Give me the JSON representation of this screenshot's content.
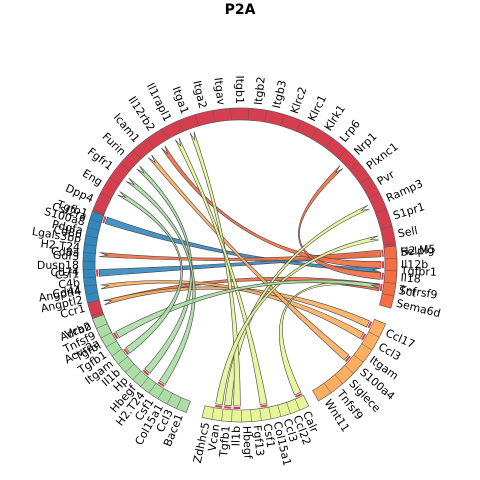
{
  "title": "P2A",
  "colors": {
    "red": "#d53e4f",
    "blue": "#3288bd",
    "orange": "#f46d43",
    "amber": "#fdae61",
    "yellow": "#fee08b",
    "lime": "#e6f598",
    "lightgreen": "#abdda4",
    "green": "#99d594"
  },
  "groups": [
    {
      "name": "red",
      "color": "#d53e4f",
      "labels": [
        "Acvr2a",
        "Adrb2",
        "Ccr1",
        "Cd44",
        "Cd74",
        "Cd8a",
        "Cd86",
        "Csf2ra",
        "Dpp4",
        "Eng",
        "Fgfr1",
        "Furin",
        "Icam1",
        "Il12rb2",
        "Il1rapl1",
        "Itga1",
        "Itga2",
        "Itgav",
        "Itgb1",
        "Itgb2",
        "Itgb3",
        "Klrc2",
        "Klrc1",
        "Klrk1",
        "Lrp6",
        "Nrp1",
        "Plxnc1",
        "Pvr",
        "Ramp3",
        "S1pr1",
        "Sell",
        "Selplg",
        "Tgfbr1",
        "Tnfrsf9"
      ]
    },
    {
      "name": "orange",
      "color": "#f46d43",
      "labels": [
        "H2.M5",
        "Il12b",
        "Il18",
        "Sct",
        "Sema6d"
      ]
    },
    {
      "name": "amber",
      "color": "#fdae61",
      "labels": [
        "Ccl17",
        "Ccl3",
        "Itgam",
        "S100a4",
        "Siglece",
        "Tnfsf9",
        "Wnt11"
      ]
    },
    {
      "name": "lime",
      "color": "#e6f598",
      "labels": [
        "Calr",
        "Ccl22",
        "Ccl3",
        "Col15a1",
        "Csf1",
        "Fgf13",
        "Hbegf",
        "Il1b",
        "Tgfb1",
        "Vcan",
        "Zdhhc5"
      ]
    },
    {
      "name": "green",
      "color": "#abdda4",
      "labels": [
        "Bace1",
        "Ccl3",
        "Col15a1",
        "Csf1",
        "H2.T24",
        "Hbegf",
        "Hp",
        "Il1b",
        "Itgam",
        "Tgfb1",
        "Tgfbi",
        "Tnfsf9",
        "Vcan"
      ]
    },
    {
      "name": "blue",
      "color": "#3288bd",
      "labels": [
        "Angptl2",
        "Angptl4",
        "C4b",
        "Csf1",
        "Dusp18",
        "Gdf3",
        "H2.T24",
        "Lgals3bp",
        "Pdgfa",
        "S100a8",
        "Tgfb1"
      ]
    }
  ],
  "links": [
    {
      "from": "Tgfb1",
      "to": "Tgfbr1",
      "color": "#3288bd"
    },
    {
      "from": "Csf1",
      "to": "Selplg",
      "color": "#3288bd"
    },
    {
      "from": "H2.M5",
      "to": "Cd8a",
      "color": "#f46d43"
    },
    {
      "from": "Il12b",
      "to": "Il12rb2",
      "color": "#f46d43"
    },
    {
      "from": "Il18",
      "to": "Nrp1",
      "color": "#f46d43"
    },
    {
      "from": "Sct",
      "to": "Ccr1",
      "color": "#f46d43"
    },
    {
      "from": "Ccl17",
      "to": "Ccr1",
      "color": "#fdae61"
    },
    {
      "from": "Ccl3",
      "to": "Cd44",
      "color": "#fdae61"
    },
    {
      "from": "S100a4",
      "to": "Icam1",
      "color": "#fdae61"
    },
    {
      "from": "Tgfb1",
      "to": "Ramp3",
      "color": "#e6f598"
    },
    {
      "from": "Il1b",
      "to": "Itga1",
      "color": "#e6f598"
    },
    {
      "from": "Csf1",
      "to": "Il1rapl1",
      "color": "#e6f598"
    },
    {
      "from": "Vcan",
      "to": "Sell",
      "color": "#e6f598"
    },
    {
      "from": "Calr",
      "to": "Tnfrsf9",
      "color": "#e6f598"
    },
    {
      "from": "Hbegf",
      "to": "Furin",
      "color": "#abdda4"
    },
    {
      "from": "Csf1",
      "to": "Fgfr1",
      "color": "#abdda4"
    },
    {
      "from": "Tgfbi",
      "to": "Tnfrsf9",
      "color": "#abdda4"
    },
    {
      "from": "Itgam",
      "to": "Eng",
      "color": "#abdda4"
    }
  ]
}
